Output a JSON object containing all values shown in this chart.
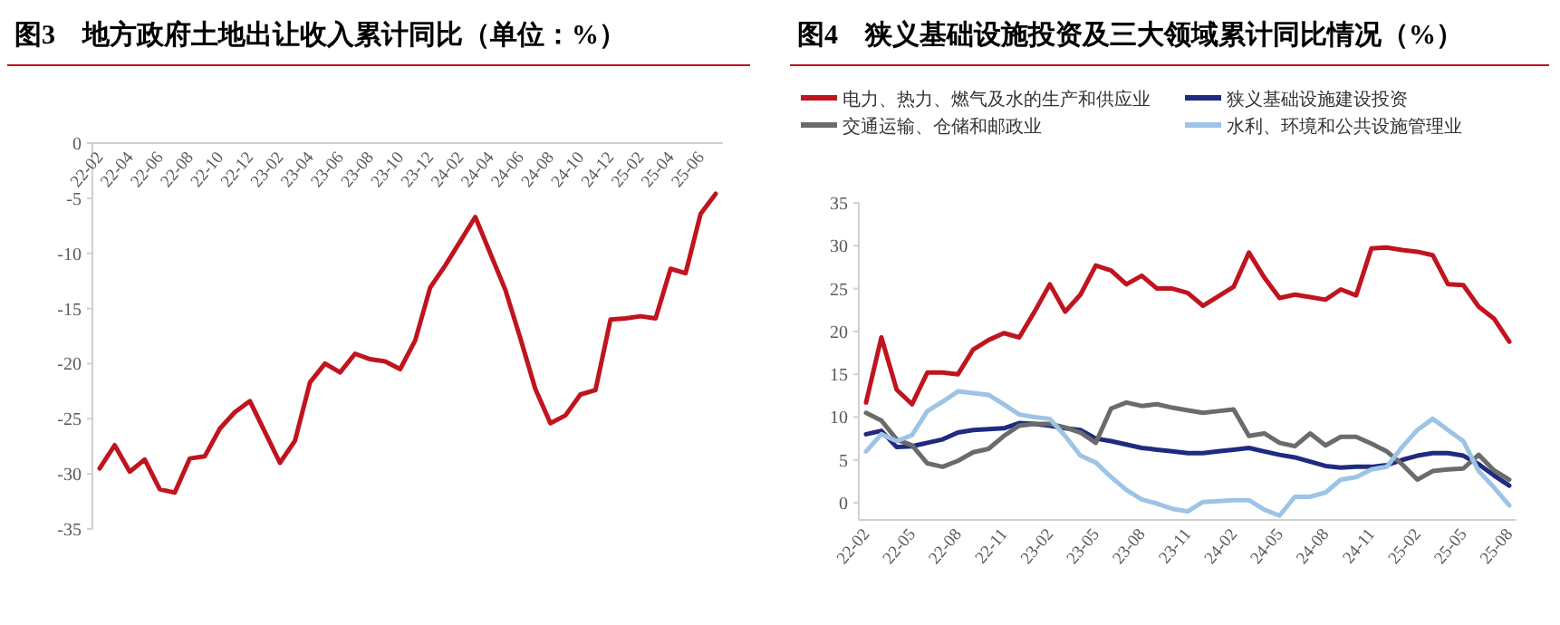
{
  "chart_data": [
    {
      "type": "line",
      "title": "图3　地方政府土地出让收入累计同比（单位：%）",
      "categories": [
        "22-02",
        null,
        "22-04",
        null,
        "22-06",
        null,
        "22-08",
        null,
        "22-10",
        null,
        "22-12",
        null,
        "23-02",
        null,
        "23-04",
        null,
        "23-06",
        null,
        "23-08",
        null,
        "23-10",
        null,
        "23-12",
        null,
        "24-02",
        null,
        "24-04",
        null,
        "24-06",
        null,
        "24-08",
        null,
        "24-10",
        null,
        "24-12",
        null,
        "25-02",
        null,
        "25-04",
        null,
        "25-06",
        null
      ],
      "series": [
        {
          "color": "#c0141f",
          "values": [
            -29.5,
            -27.4,
            -29.8,
            -28.7,
            -31.4,
            -31.7,
            -28.6,
            -28.4,
            -25.9,
            -24.4,
            -23.4,
            -26.2,
            -29.0,
            -27.0,
            -21.7,
            -20.0,
            -20.8,
            -19.1,
            -19.6,
            -19.8,
            -20.5,
            -17.9,
            -13.1,
            -11.1,
            -8.9,
            -6.7,
            -10.0,
            -13.3,
            -17.7,
            -22.3,
            -25.4,
            -24.7,
            -22.8,
            -22.4,
            -16.0,
            -15.9,
            -15.7,
            -15.9,
            -11.4,
            -11.8,
            -6.4,
            -4.6
          ]
        }
      ],
      "ylim": [
        -35,
        0
      ],
      "yticks": [
        0,
        -5,
        -10,
        -15,
        -20,
        -25,
        -30,
        -35
      ],
      "grid": false,
      "legend": false,
      "marker": "none",
      "line_style": "solid"
    },
    {
      "type": "line",
      "title": "图4　狭义基础设施投资及三大领域累计同比情况（%）",
      "categories": [
        "22-02",
        null,
        null,
        "22-05",
        null,
        null,
        "22-08",
        null,
        null,
        "22-11",
        null,
        null,
        "23-02",
        null,
        null,
        "23-05",
        null,
        null,
        "23-08",
        null,
        null,
        "23-11",
        null,
        null,
        "24-02",
        null,
        null,
        "24-05",
        null,
        null,
        "24-08",
        null,
        null,
        "24-11",
        null,
        null,
        "25-02",
        null,
        null,
        "25-05",
        null,
        null,
        "25-08"
      ],
      "series": [
        {
          "name": "电力、热力、燃气及水的生产和供应业",
          "color": "#c0141f",
          "values": [
            11.7,
            19.3,
            13.2,
            11.5,
            15.2,
            15.2,
            15.0,
            17.9,
            19.0,
            19.8,
            19.3,
            22.3,
            25.5,
            22.3,
            24.3,
            27.7,
            27.1,
            25.5,
            26.5,
            25.0,
            25.0,
            24.5,
            23.0,
            24.1,
            25.2,
            29.2,
            26.3,
            23.9,
            24.3,
            24.0,
            23.7,
            24.9,
            24.2,
            29.7,
            29.8,
            29.5,
            29.3,
            28.9,
            25.5,
            25.4,
            22.9,
            21.5,
            18.8
          ]
        },
        {
          "name": "狭义基础设施建设投资",
          "color": "#1f2a80",
          "values": [
            8.0,
            8.4,
            6.5,
            6.6,
            7.0,
            7.4,
            8.2,
            8.5,
            8.6,
            8.7,
            9.3,
            9.2,
            9.0,
            8.7,
            8.5,
            7.5,
            7.2,
            6.8,
            6.4,
            6.2,
            6.0,
            5.8,
            5.8,
            6.0,
            6.2,
            6.4,
            6.0,
            5.6,
            5.3,
            4.8,
            4.3,
            4.1,
            4.2,
            4.2,
            4.4,
            5.0,
            5.5,
            5.8,
            5.8,
            5.5,
            4.5,
            3.2,
            2.0
          ]
        },
        {
          "name": "交通运输、仓储和邮政业",
          "color": "#6b6b6b",
          "values": [
            10.5,
            9.6,
            7.4,
            6.7,
            4.6,
            4.2,
            4.9,
            5.9,
            6.3,
            7.8,
            9.0,
            9.2,
            9.2,
            8.8,
            8.2,
            7.0,
            11.0,
            11.7,
            11.3,
            11.5,
            11.1,
            10.8,
            10.5,
            10.7,
            10.9,
            7.8,
            8.1,
            7.0,
            6.6,
            8.1,
            6.7,
            7.7,
            7.7,
            6.9,
            6.0,
            4.5,
            2.7,
            3.7,
            3.9,
            4.0,
            5.6,
            3.8,
            2.7
          ]
        },
        {
          "name": "水利、环境和公共设施管理业",
          "color": "#9dc3e6",
          "values": [
            6.0,
            8.0,
            7.2,
            7.9,
            10.7,
            11.8,
            13.0,
            12.8,
            12.6,
            11.5,
            10.3,
            10.0,
            9.8,
            7.8,
            5.5,
            4.7,
            3.0,
            1.5,
            0.4,
            -0.1,
            -0.7,
            -1.0,
            0.1,
            0.2,
            0.3,
            0.3,
            -0.8,
            -1.5,
            0.7,
            0.7,
            1.2,
            2.7,
            3.0,
            3.9,
            4.2,
            6.5,
            8.5,
            9.8,
            8.5,
            7.2,
            3.7,
            1.8,
            -0.3
          ]
        }
      ],
      "ylim": [
        -2,
        35
      ],
      "yticks": [
        0,
        5,
        10,
        15,
        20,
        25,
        30,
        35
      ],
      "grid": false,
      "legend": "top",
      "marker": "none",
      "line_style": "solid"
    }
  ]
}
